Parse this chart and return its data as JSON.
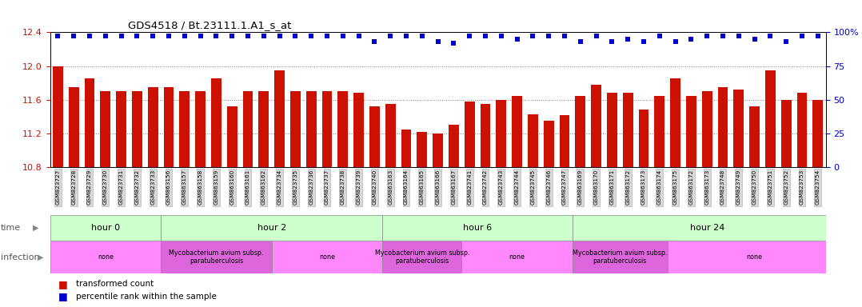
{
  "title": "GDS4518 / Bt.23111.1.A1_s_at",
  "samples": [
    "GSM823727",
    "GSM823728",
    "GSM823729",
    "GSM823730",
    "GSM823731",
    "GSM823732",
    "GSM823733",
    "GSM863156",
    "GSM863157",
    "GSM863158",
    "GSM863159",
    "GSM863160",
    "GSM863161",
    "GSM863162",
    "GSM823734",
    "GSM823735",
    "GSM823736",
    "GSM823737",
    "GSM823738",
    "GSM823739",
    "GSM823740",
    "GSM863163",
    "GSM863164",
    "GSM863165",
    "GSM863166",
    "GSM863167",
    "GSM823741",
    "GSM823742",
    "GSM823743",
    "GSM823744",
    "GSM823745",
    "GSM823746",
    "GSM823747",
    "GSM863169",
    "GSM863170",
    "GSM863171",
    "GSM863172",
    "GSM863173",
    "GSM863174",
    "GSM863175",
    "GSM863172",
    "GSM863173",
    "GSM823748",
    "GSM823749",
    "GSM823750",
    "GSM823751",
    "GSM823752",
    "GSM823753",
    "GSM823754"
  ],
  "bar_values": [
    12.0,
    11.75,
    11.85,
    11.7,
    11.7,
    11.7,
    11.75,
    11.75,
    11.7,
    11.7,
    11.85,
    11.52,
    11.7,
    11.7,
    11.95,
    11.7,
    11.7,
    11.7,
    11.7,
    11.68,
    11.52,
    11.55,
    11.25,
    11.22,
    11.2,
    11.3,
    11.58,
    11.55,
    11.6,
    11.65,
    11.43,
    11.35,
    11.42,
    11.65,
    11.78,
    11.68,
    11.68,
    11.48,
    11.65,
    11.85,
    11.65,
    11.7,
    11.75,
    11.72,
    11.52,
    11.95,
    11.6,
    11.68,
    11.6
  ],
  "percentile_values": [
    97,
    97,
    97,
    97,
    97,
    97,
    97,
    97,
    97,
    97,
    97,
    97,
    97,
    97,
    97,
    97,
    97,
    97,
    97,
    97,
    93,
    97,
    97,
    97,
    93,
    92,
    97,
    97,
    97,
    95,
    97,
    97,
    97,
    93,
    97,
    93,
    95,
    93,
    97,
    93,
    95,
    97,
    97,
    97,
    95,
    97,
    93,
    97,
    97
  ],
  "ylim_left": [
    10.8,
    12.4
  ],
  "ylim_right": [
    0,
    100
  ],
  "yticks_left": [
    10.8,
    11.2,
    11.6,
    12.0,
    12.4
  ],
  "yticks_right": [
    0,
    25,
    50,
    75,
    100
  ],
  "bar_color": "#cc1100",
  "dot_color": "#0000cc",
  "time_groups": [
    {
      "label": "hour 0",
      "start": 0,
      "end": 7,
      "color": "#ccffcc"
    },
    {
      "label": "hour 2",
      "start": 7,
      "end": 21,
      "color": "#ccffcc"
    },
    {
      "label": "hour 6",
      "start": 21,
      "end": 33,
      "color": "#ccffcc"
    },
    {
      "label": "hour 24",
      "start": 33,
      "end": 50,
      "color": "#ccffcc"
    }
  ],
  "infection_groups": [
    {
      "label": "none",
      "start": 0,
      "end": 7,
      "color": "#ff88ff"
    },
    {
      "label": "Mycobacterium avium subsp.\nparatuberculosis",
      "start": 7,
      "end": 14,
      "color": "#dd66dd"
    },
    {
      "label": "none",
      "start": 14,
      "end": 21,
      "color": "#ff88ff"
    },
    {
      "label": "Mycobacterium avium subsp.\nparatuberculosis",
      "start": 21,
      "end": 26,
      "color": "#dd66dd"
    },
    {
      "label": "none",
      "start": 26,
      "end": 33,
      "color": "#ff88ff"
    },
    {
      "label": "Mycobacterium avium subsp.\nparatuberculosis",
      "start": 33,
      "end": 39,
      "color": "#dd66dd"
    },
    {
      "label": "none",
      "start": 39,
      "end": 50,
      "color": "#ff88ff"
    }
  ],
  "fig_width": 10.78,
  "fig_height": 3.84,
  "dpi": 100
}
